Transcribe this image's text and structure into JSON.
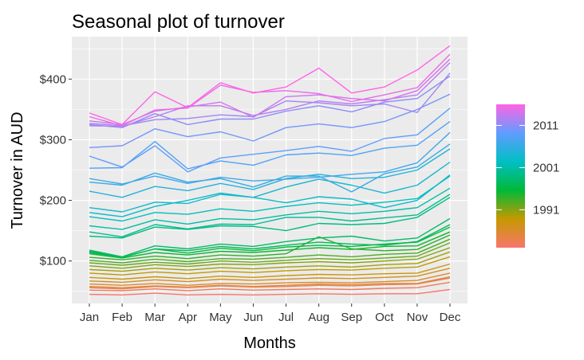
{
  "chart_data": {
    "type": "line",
    "title": "Seasonal plot of turnover",
    "xlabel": "Months",
    "ylabel": "Turnover in AUD",
    "categories": [
      "Jan",
      "Feb",
      "Mar",
      "Apr",
      "May",
      "Jun",
      "Jul",
      "Aug",
      "Sep",
      "Oct",
      "Nov",
      "Dec"
    ],
    "ylim": [
      30,
      470
    ],
    "yticks": [
      100,
      200,
      300,
      400
    ],
    "ytick_labels": [
      "$100",
      "$200",
      "$300",
      "$400"
    ],
    "legend": {
      "position": "right",
      "type": "colorbar",
      "labels": [
        "1991",
        "2001",
        "2011"
      ],
      "label_years": [
        1991,
        2001,
        2011
      ],
      "year_range": [
        1982,
        2016
      ],
      "colors": [
        "#F8766D",
        "#C59900",
        "#00B938",
        "#00BFC4",
        "#619CFF",
        "#FF64E5"
      ]
    },
    "series": [
      {
        "year": 1982,
        "values": [
          45,
          44,
          47,
          44,
          45,
          44,
          45,
          46,
          45,
          46,
          46,
          53
        ]
      },
      {
        "year": 1983,
        "values": [
          52,
          51,
          54,
          51,
          54,
          52,
          53,
          54,
          53,
          55,
          56,
          65
        ]
      },
      {
        "year": 1984,
        "values": [
          56,
          54,
          58,
          56,
          59,
          57,
          58,
          60,
          59,
          61,
          62,
          72
        ]
      },
      {
        "year": 1985,
        "values": [
          58,
          56,
          59,
          57,
          60,
          58,
          60,
          62,
          61,
          63,
          63,
          74
        ]
      },
      {
        "year": 1986,
        "values": [
          62,
          60,
          63,
          60,
          63,
          62,
          64,
          65,
          64,
          66,
          68,
          80
        ]
      },
      {
        "year": 1987,
        "values": [
          67,
          65,
          69,
          66,
          70,
          68,
          70,
          72,
          71,
          73,
          75,
          88
        ]
      },
      {
        "year": 1988,
        "values": [
          73,
          70,
          74,
          71,
          75,
          73,
          76,
          78,
          77,
          79,
          80,
          95
        ]
      },
      {
        "year": 1989,
        "values": [
          80,
          77,
          82,
          79,
          83,
          81,
          84,
          86,
          85,
          88,
          90,
          107
        ]
      },
      {
        "year": 1990,
        "values": [
          86,
          83,
          88,
          85,
          89,
          87,
          90,
          92,
          90,
          94,
          96,
          115
        ]
      },
      {
        "year": 1991,
        "values": [
          92,
          88,
          94,
          91,
          95,
          94,
          97,
          99,
          97,
          100,
          103,
          122
        ]
      },
      {
        "year": 1992,
        "values": [
          97,
          93,
          98,
          95,
          100,
          98,
          101,
          104,
          102,
          105,
          108,
          130
        ]
      },
      {
        "year": 1993,
        "values": [
          101,
          97,
          103,
          99,
          104,
          103,
          106,
          110,
          107,
          111,
          113,
          136
        ]
      },
      {
        "year": 1994,
        "values": [
          106,
          102,
          108,
          104,
          110,
          108,
          112,
          140,
          120,
          117,
          119,
          143
        ]
      },
      {
        "year": 1995,
        "values": [
          112,
          105,
          114,
          110,
          116,
          114,
          118,
          122,
          119,
          124,
          125,
          148
        ]
      },
      {
        "year": 1996,
        "values": [
          116,
          106,
          120,
          113,
          121,
          117,
          123,
          126,
          124,
          128,
          131,
          156
        ]
      },
      {
        "year": 1997,
        "values": [
          114,
          106,
          120,
          117,
          124,
          120,
          126,
          131,
          128,
          126,
          132,
          160
        ]
      },
      {
        "year": 1998,
        "values": [
          118,
          107,
          125,
          120,
          128,
          124,
          132,
          138,
          141,
          133,
          138,
          170
        ]
      },
      {
        "year": 1999,
        "values": [
          141,
          138,
          156,
          152,
          158,
          157,
          150,
          162,
          160,
          162,
          172,
          205
        ]
      },
      {
        "year": 2000,
        "values": [
          148,
          140,
          160,
          153,
          161,
          160,
          172,
          172,
          166,
          171,
          176,
          210
        ]
      },
      {
        "year": 2001,
        "values": [
          158,
          152,
          168,
          161,
          170,
          168,
          176,
          182,
          178,
          182,
          188,
          220
        ]
      },
      {
        "year": 2002,
        "values": [
          173,
          166,
          180,
          177,
          186,
          182,
          190,
          196,
          192,
          197,
          203,
          240
        ]
      },
      {
        "year": 2003,
        "values": [
          180,
          173,
          190,
          200,
          212,
          205,
          196,
          206,
          202,
          188,
          200,
          242
        ]
      },
      {
        "year": 2004,
        "values": [
          188,
          181,
          197,
          195,
          210,
          205,
          222,
          235,
          225,
          212,
          225,
          263
        ]
      },
      {
        "year": 2005,
        "values": [
          215,
          205,
          223,
          216,
          228,
          218,
          236,
          243,
          236,
          238,
          250,
          285
        ]
      },
      {
        "year": 2006,
        "values": [
          230,
          225,
          245,
          230,
          236,
          222,
          240,
          240,
          214,
          244,
          255,
          293
        ]
      },
      {
        "year": 2007,
        "values": [
          236,
          227,
          240,
          228,
          238,
          232,
          235,
          238,
          243,
          247,
          262,
          312
        ]
      },
      {
        "year": 2008,
        "values": [
          253,
          254,
          297,
          252,
          265,
          258,
          275,
          278,
          274,
          286,
          291,
          330
        ]
      },
      {
        "year": 2009,
        "values": [
          273,
          255,
          290,
          247,
          270,
          276,
          282,
          289,
          281,
          302,
          308,
          352
        ]
      },
      {
        "year": 2010,
        "values": [
          287,
          290,
          318,
          305,
          313,
          298,
          320,
          326,
          320,
          330,
          350,
          375
        ]
      },
      {
        "year": 2011,
        "values": [
          325,
          320,
          343,
          325,
          334,
          334,
          347,
          356,
          346,
          362,
          368,
          405
        ]
      },
      {
        "year": 2012,
        "values": [
          327,
          323,
          333,
          335,
          341,
          338,
          364,
          361,
          356,
          359,
          345,
          410
        ]
      },
      {
        "year": 2013,
        "values": [
          323,
          322,
          338,
          356,
          356,
          340,
          350,
          364,
          359,
          366,
          374,
          427
        ]
      },
      {
        "year": 2014,
        "values": [
          331,
          325,
          347,
          354,
          362,
          337,
          371,
          374,
          368,
          364,
          381,
          433
        ]
      },
      {
        "year": 2015,
        "values": [
          338,
          323,
          349,
          352,
          390,
          378,
          381,
          376,
          363,
          374,
          386,
          441
        ]
      },
      {
        "year": 2016,
        "values": [
          344,
          325,
          379,
          353,
          394,
          377,
          387,
          418,
          377,
          387,
          415,
          455
        ]
      }
    ]
  }
}
